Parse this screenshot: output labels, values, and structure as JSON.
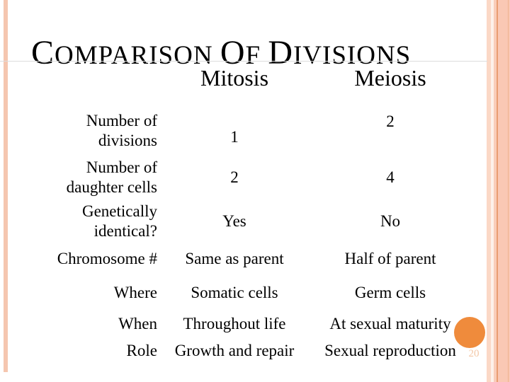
{
  "slide": {
    "title": "COMPARISON OF DIVISIONS",
    "slide_number": "20",
    "accent_colors": {
      "side_stripe": "#f5c6af",
      "border_dark_line": "#e99d72",
      "border_light_band": "#fdf1ea",
      "circle": "#ef8b3c",
      "title_rule": "#dcdcdc"
    }
  },
  "table": {
    "columns": [
      "Mitosis",
      "Meiosis"
    ],
    "rows": [
      {
        "label": "Number of\ndivisions",
        "mitosis": "1",
        "meiosis": "2"
      },
      {
        "label": "Number of\ndaughter cells",
        "mitosis": "2",
        "meiosis": "4"
      },
      {
        "label": "Genetically\nidentical?",
        "mitosis": "Yes",
        "meiosis": "No"
      },
      {
        "label": "Chromosome #",
        "mitosis": "Same as parent",
        "meiosis": "Half of parent"
      },
      {
        "label": "Where",
        "mitosis": "Somatic cells",
        "meiosis": "Germ cells"
      },
      {
        "label": "When",
        "mitosis": "Throughout life",
        "meiosis": "At sexual maturity"
      },
      {
        "label": "Role",
        "mitosis": "Growth and repair",
        "meiosis": "Sexual reproduction"
      }
    ]
  }
}
